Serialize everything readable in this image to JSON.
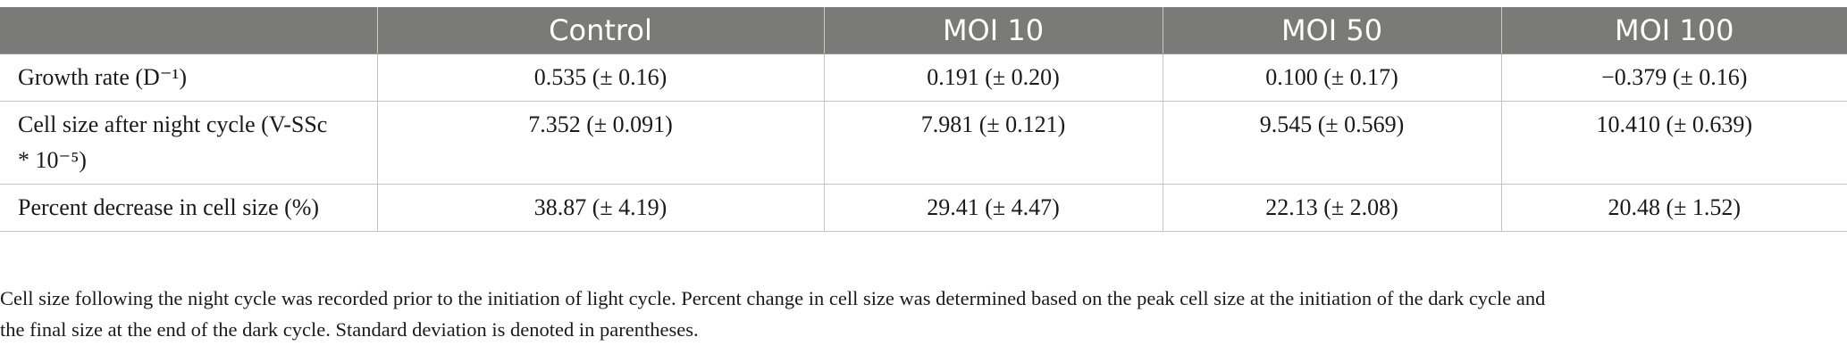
{
  "table": {
    "columns": [
      "",
      "Control",
      "MOI 10",
      "MOI 50",
      "MOI 100"
    ],
    "rows": [
      {
        "label": "Growth rate (D⁻¹)",
        "values": [
          "0.535 (± 0.16)",
          "0.191 (± 0.20)",
          "0.100 (± 0.17)",
          "−0.379 (± 0.16)"
        ]
      },
      {
        "label_line1": "Cell size after night cycle (V-SSc",
        "label_line2": "* 10⁻⁵)",
        "values": [
          "7.352 (± 0.091)",
          "7.981 (± 0.121)",
          "9.545 (± 0.569)",
          "10.410 (± 0.639)"
        ]
      },
      {
        "label": "Percent decrease in cell size (%)",
        "values": [
          "38.87 (± 4.19)",
          "29.41 (± 4.47)",
          "22.13 (± 2.08)",
          "20.48 (± 1.52)"
        ]
      }
    ]
  },
  "footnote": {
    "line1": "Cell size following the night cycle was recorded prior to the initiation of light cycle. Percent change in cell size was determined based on the peak cell size at the initiation of the dark cycle and",
    "line2": "the final size at the end of the dark cycle. Standard deviation is denoted in parentheses."
  }
}
